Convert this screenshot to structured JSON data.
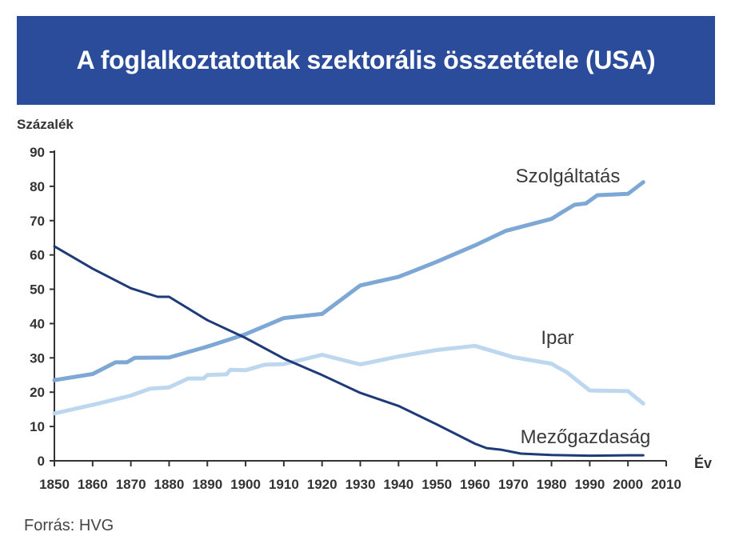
{
  "title": "A foglalkoztatottak szektorális összetétele (USA)",
  "source": "Forrás: HVG",
  "colors": {
    "banner": "#2b4c9b",
    "szolgaltatas": "#7da7d4",
    "ipar": "#bdd7ee",
    "mezogazdasag": "#1e3a78"
  },
  "chart_data": {
    "type": "line",
    "title": "A foglalkoztatottak szektorális összetétele (USA)",
    "ylabel": "Százalék",
    "xlabel": "Év",
    "xlim": [
      1850,
      2010
    ],
    "ylim": [
      0,
      90
    ],
    "xticks": [
      "1850",
      "1860",
      "1870",
      "1880",
      "1890",
      "1900",
      "1910",
      "1920",
      "1930",
      "1940",
      "1950",
      "1960",
      "1970",
      "1980",
      "1990",
      "2000",
      "2010"
    ],
    "yticks": [
      "0",
      "10",
      "20",
      "30",
      "40",
      "50",
      "60",
      "70",
      "80",
      "90"
    ],
    "grid": false,
    "legend": "inline labels",
    "series": [
      {
        "name": "Szolgáltatás",
        "color": "#7da7d4",
        "x": [
          1850,
          1860,
          1866,
          1869,
          1871,
          1880,
          1890,
          1900,
          1910,
          1920,
          1930,
          1940,
          1950,
          1960,
          1968,
          1980,
          1983,
          1986,
          1989,
          1992,
          2000,
          2004
        ],
        "y": [
          23.5,
          25.3,
          28.7,
          28.7,
          30,
          30.1,
          33.3,
          36.9,
          41.6,
          42.8,
          51.1,
          53.6,
          58,
          62.8,
          67,
          70.5,
          72.6,
          74.6,
          75,
          77.4,
          77.8,
          81.2
        ]
      },
      {
        "name": "Ipar",
        "color": "#bdd7ee",
        "x": [
          1850,
          1860,
          1870,
          1875,
          1880,
          1885,
          1889,
          1890,
          1895,
          1896,
          1900,
          1905,
          1910,
          1920,
          1930,
          1940,
          1950,
          1960,
          1970,
          1980,
          1982,
          1984,
          1986,
          1990,
          2000,
          2004
        ],
        "y": [
          13.8,
          16.3,
          19,
          21,
          21.4,
          24,
          24,
          25,
          25.2,
          26.5,
          26.4,
          28,
          28.2,
          30.9,
          28.1,
          30.4,
          32.3,
          33.5,
          30.2,
          28.3,
          27,
          25.8,
          24,
          20.5,
          20.3,
          16.7
        ]
      },
      {
        "name": "Mezőgazdaság",
        "color": "#1e3a78",
        "x": [
          1850,
          1860,
          1870,
          1877,
          1880,
          1890,
          1900,
          1910,
          1920,
          1930,
          1940,
          1950,
          1960,
          1963,
          1967,
          1972,
          1980,
          1990,
          2000,
          2004
        ],
        "y": [
          62.5,
          56,
          50.3,
          47.8,
          47.8,
          41,
          35.8,
          29.8,
          25,
          19.8,
          16,
          10.6,
          5,
          3.7,
          3.2,
          2.1,
          1.7,
          1.5,
          1.6,
          1.6
        ]
      }
    ]
  }
}
